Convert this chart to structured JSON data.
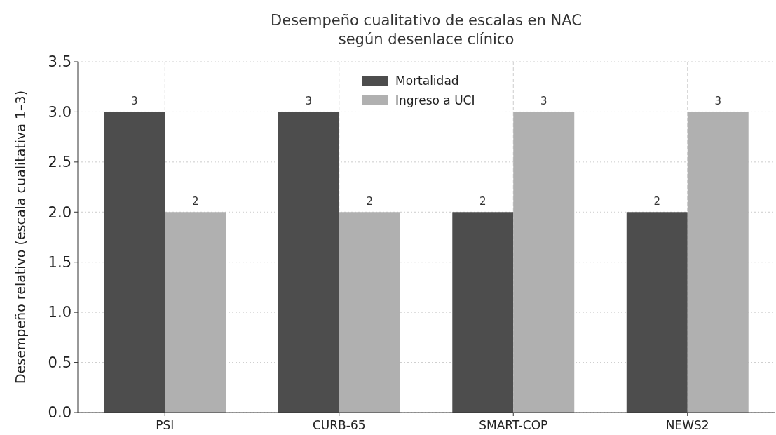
{
  "chart_data": {
    "type": "bar",
    "title": "Desempeño cualitativo de escalas en NAC\nsegún desenlace clínico",
    "ylabel": "Desempeño relativo (escala cualitativa 1–3)",
    "categories": [
      "PSI",
      "CURB-65",
      "SMART-COP",
      "NEWS2"
    ],
    "series": [
      {
        "name": "Mortalidad",
        "color": "#4d4d4d",
        "values": [
          3,
          3,
          2,
          2
        ]
      },
      {
        "name": "Ingreso a UCI",
        "color": "#b0b0b0",
        "values": [
          2,
          2,
          3,
          3
        ]
      }
    ],
    "ylim": [
      0,
      3.5
    ],
    "yticks": [
      {
        "value": 0,
        "label": "0.0"
      },
      {
        "value": 0.5,
        "label": "0.5"
      },
      {
        "value": 1,
        "label": "1.0"
      },
      {
        "value": 1.5,
        "label": "1.5"
      },
      {
        "value": 2,
        "label": "2.0"
      },
      {
        "value": 2.5,
        "label": "2.5"
      },
      {
        "value": 3,
        "label": "3.0"
      },
      {
        "value": 3.5,
        "label": "3.5"
      }
    ],
    "grid": true,
    "legend": "top",
    "data_labels": true
  }
}
